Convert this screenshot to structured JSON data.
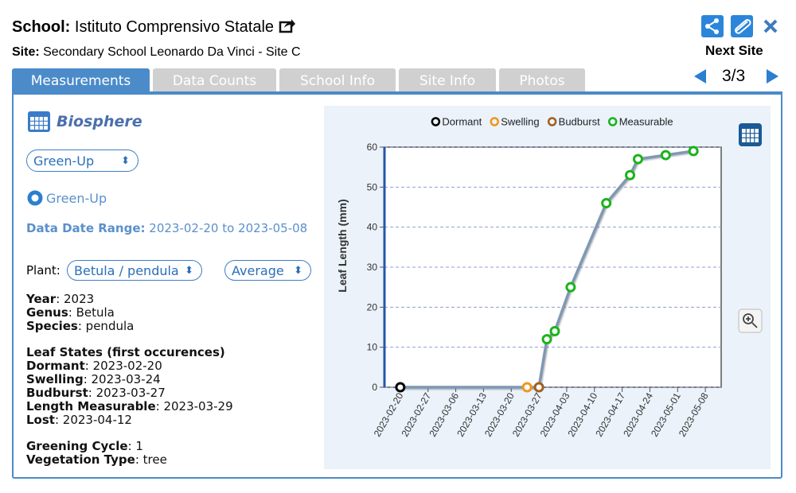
{
  "header": {
    "school_label": "School:",
    "school": "Istituto Comprensivo Statale",
    "site_label": "Site:",
    "site": "Secondary School Leonardo Da Vinci - Site C",
    "next_site": "Next Site",
    "pager": "3/3"
  },
  "tabs": [
    "Measurements",
    "Data Counts",
    "School Info",
    "Site Info",
    "Photos"
  ],
  "panel": {
    "title": "Biosphere",
    "select": "Green-Up",
    "radio": "Green-Up",
    "date_range_label": "Data Date Range:",
    "date_range": "2023-02-20 to 2023-05-08",
    "plant_label": "Plant:",
    "plant": "Betula / pendula",
    "aggregate": "Average",
    "plant_info": [
      {
        "label": "Year",
        "value": ": 2023"
      },
      {
        "label": "Genus",
        "value": ": Betula"
      },
      {
        "label": "Species",
        "value": ": pendula"
      }
    ],
    "states_heading": "Leaf States (first occurences)",
    "states": [
      {
        "label": "Dormant",
        "value": ": 2023-02-20"
      },
      {
        "label": "Swelling",
        "value": ": 2023-03-24"
      },
      {
        "label": "Budburst",
        "value": ": 2023-03-27"
      },
      {
        "label": "Length Measurable",
        "value": ": 2023-03-29"
      },
      {
        "label": "Lost",
        "value": ": 2023-04-12"
      }
    ],
    "cycle_info": [
      {
        "label": "Greening Cycle",
        "value": ": 1"
      },
      {
        "label": "Vegetation Type",
        "value": ": tree"
      }
    ]
  },
  "chart_data": {
    "type": "line",
    "y_label": "Leaf Length (mm)",
    "ylim": [
      0,
      60
    ],
    "yticks": [
      0,
      10,
      20,
      30,
      40,
      50,
      60
    ],
    "xlim": [
      "2023-02-16",
      "2023-05-12"
    ],
    "xticks": [
      "2023-02-20",
      "2023-02-27",
      "2023-03-06",
      "2023-03-13",
      "2023-03-20",
      "2023-03-27",
      "2023-04-03",
      "2023-04-10",
      "2023-04-17",
      "2023-04-24",
      "2023-05-01",
      "2023-05-08"
    ],
    "grid": true,
    "line_color": "#7f98b4",
    "series": [
      {
        "name": "Dormant",
        "color": "#000000",
        "x": [
          "2023-02-20"
        ],
        "values": [
          0
        ]
      },
      {
        "name": "Swelling",
        "color": "#f0961e",
        "x": [
          "2023-03-24"
        ],
        "values": [
          0
        ]
      },
      {
        "name": "Budburst",
        "color": "#a0601e",
        "x": [
          "2023-03-27"
        ],
        "values": [
          0
        ]
      },
      {
        "name": "Measurable",
        "color": "#19b419",
        "x": [
          "2023-03-29",
          "2023-03-31",
          "2023-04-04",
          "2023-04-13",
          "2023-04-19",
          "2023-04-21",
          "2023-04-28",
          "2023-05-05"
        ],
        "values": [
          12,
          14,
          25,
          46,
          53,
          57,
          58,
          59
        ]
      }
    ]
  }
}
